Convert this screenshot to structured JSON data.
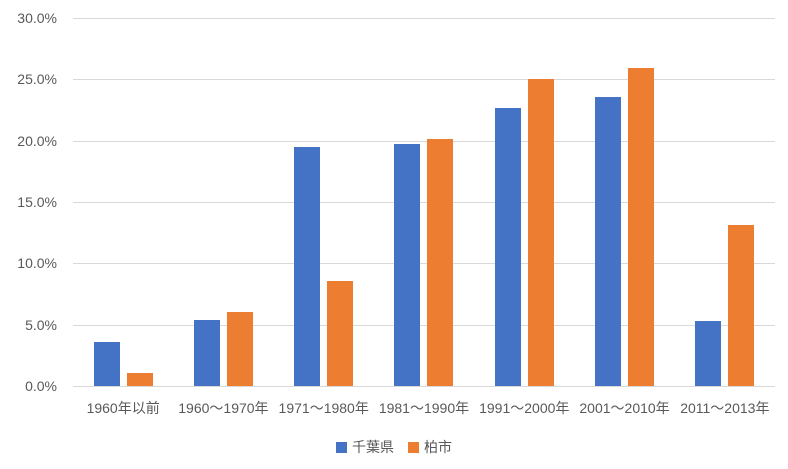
{
  "chart_data": {
    "type": "bar",
    "categories": [
      "1960年以前",
      "1960～1970年",
      "1971～1980年",
      "1981～1990年",
      "1991～2000年",
      "2001～2010年",
      "2011～2013年"
    ],
    "series": [
      {
        "id": "chiba",
        "name": "千葉県",
        "color": "#4472C4",
        "values": [
          3.6,
          5.4,
          19.5,
          19.7,
          22.7,
          23.6,
          5.3
        ]
      },
      {
        "id": "kashiwa",
        "name": "柏市",
        "color": "#ED7D31",
        "values": [
          1.1,
          6.0,
          8.6,
          20.1,
          25.0,
          25.9,
          13.1
        ]
      }
    ],
    "xlabel": "",
    "ylabel": "",
    "ylim": [
      0,
      30
    ],
    "ytick_step": 5,
    "ytick_labels": [
      "0.0%",
      "5.0%",
      "10.0%",
      "15.0%",
      "20.0%",
      "25.0%",
      "30.0%"
    ],
    "grid": true,
    "legend_position": "bottom-center",
    "colors": {
      "gridline": "#d9d9d9",
      "axis_line": "#d9d9d9",
      "tick_text": "#595959",
      "background": "#ffffff"
    }
  }
}
